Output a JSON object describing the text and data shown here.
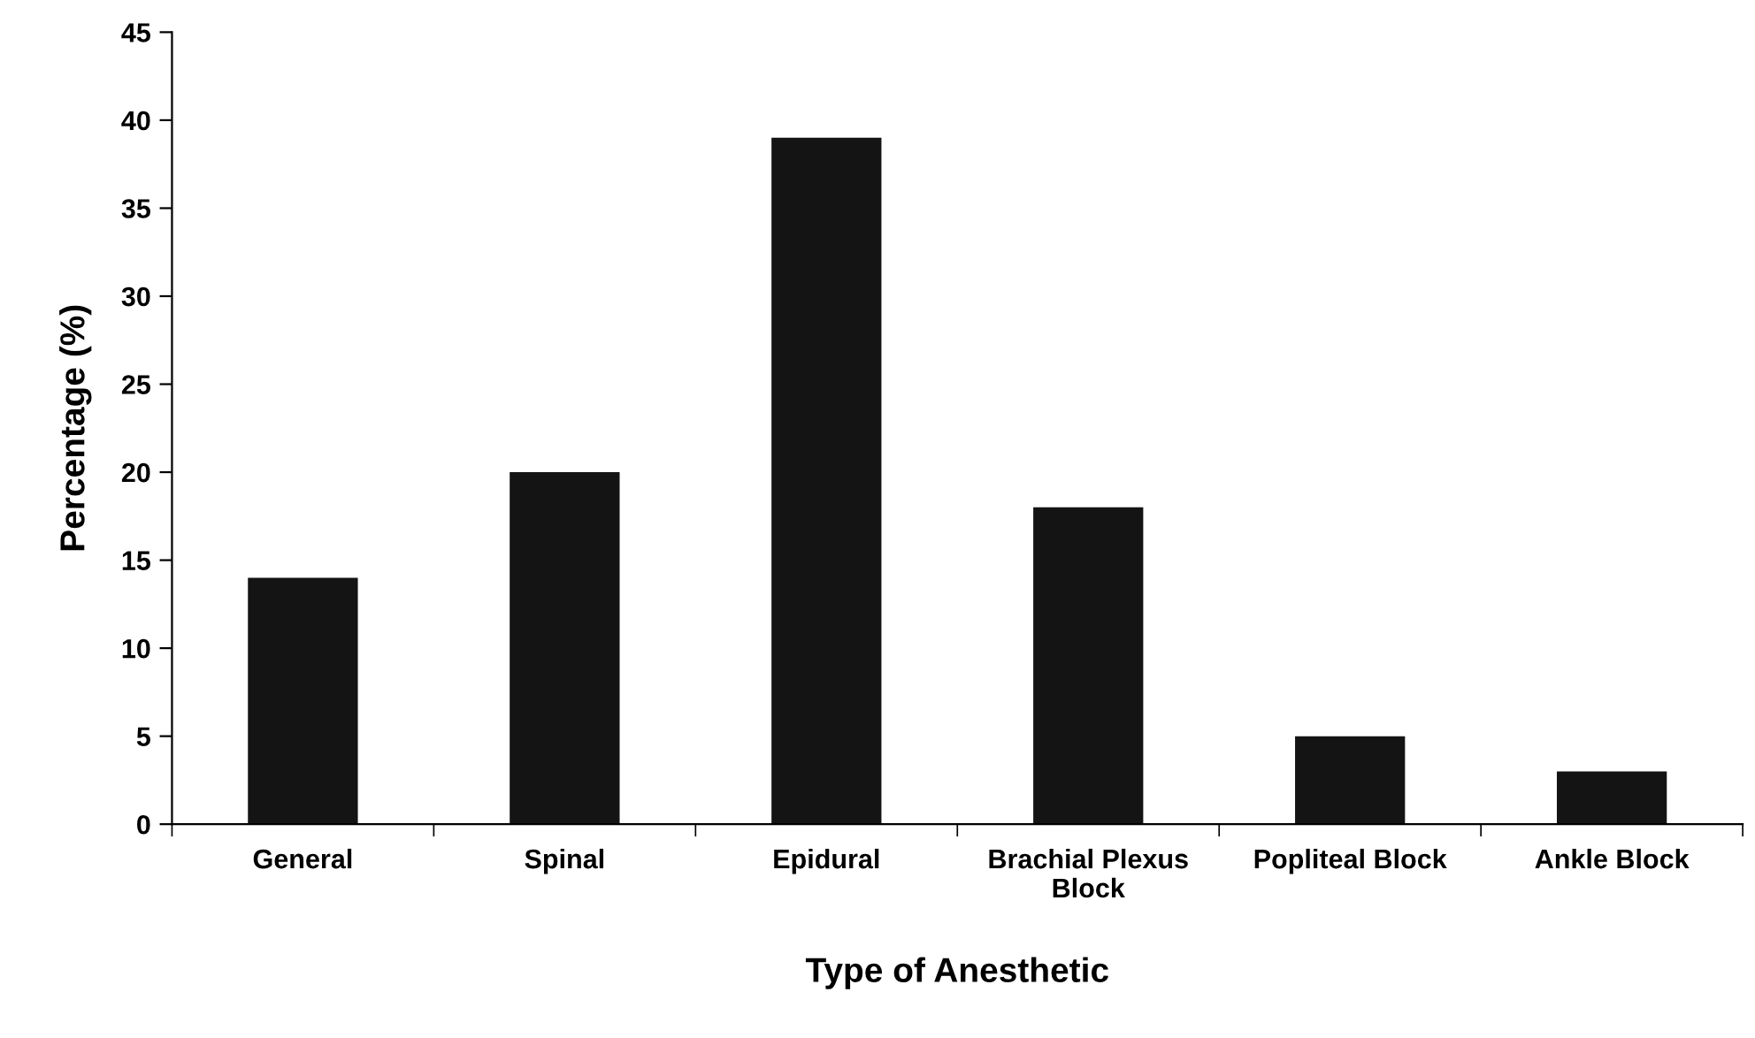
{
  "chart_data": {
    "type": "bar",
    "xlabel": "Type of Anesthetic",
    "ylabel": "Percentage (%)",
    "categories": [
      "General",
      "Spinal",
      "Epidural",
      "Brachial Plexus\nBlock",
      "Popliteal Block",
      "Ankle Block"
    ],
    "values": [
      14,
      20,
      39,
      18,
      5,
      3
    ],
    "color": "#141414",
    "ylim": [
      0,
      45
    ],
    "yticks": [
      0,
      5,
      10,
      15,
      20,
      25,
      30,
      35,
      40,
      45
    ],
    "grid": false
  }
}
